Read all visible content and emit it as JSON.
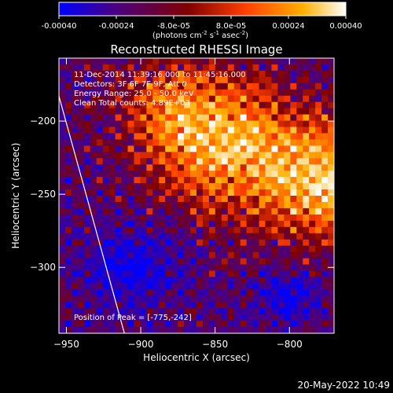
{
  "colorbar": {
    "ticks": [
      "-0.00040",
      "-0.00024",
      "-8.0e-05",
      "8.0e-05",
      "0.00024",
      "0.00040"
    ],
    "units_prefix": "(photons cm",
    "units_exp1": "-2",
    "units_mid": " s",
    "units_exp2": "-1",
    "units_mid2": " asec",
    "units_exp3": "-2",
    "units_suffix": ")",
    "gradient": [
      "#0000ff",
      "#4b007f",
      "#7f0000",
      "#ff3f00",
      "#ffaf00",
      "#ffffff"
    ]
  },
  "chart_data": {
    "type": "heatmap",
    "title": "Reconstructed RHESSI Image",
    "xlabel": "Heliocentric X (arcsec)",
    "ylabel": "Heliocentric Y (arcsec)",
    "xlim": [
      -955,
      -770
    ],
    "ylim": [
      -345,
      -157
    ],
    "xticks": [
      -950,
      -900,
      -850,
      -800
    ],
    "yticks": [
      -200,
      -250,
      -300
    ],
    "annotations": [
      "11-Dec-2014 11:39:16.000 to 11:45:16.000",
      "Detectors: 3F 6F 7F 9F, Att 0",
      "Energy Range: 25.0 - 50.0 keV",
      "Clean     Total counts: 4.89E+03"
    ],
    "peak_label": "Position of Peak = [-775,-242]",
    "peak": [
      -775,
      -242
    ],
    "limb_line": [
      [
        -955,
        -183
      ],
      [
        -911,
        -345
      ]
    ]
  },
  "footer": {
    "timestamp": "20-May-2022 10:49"
  }
}
